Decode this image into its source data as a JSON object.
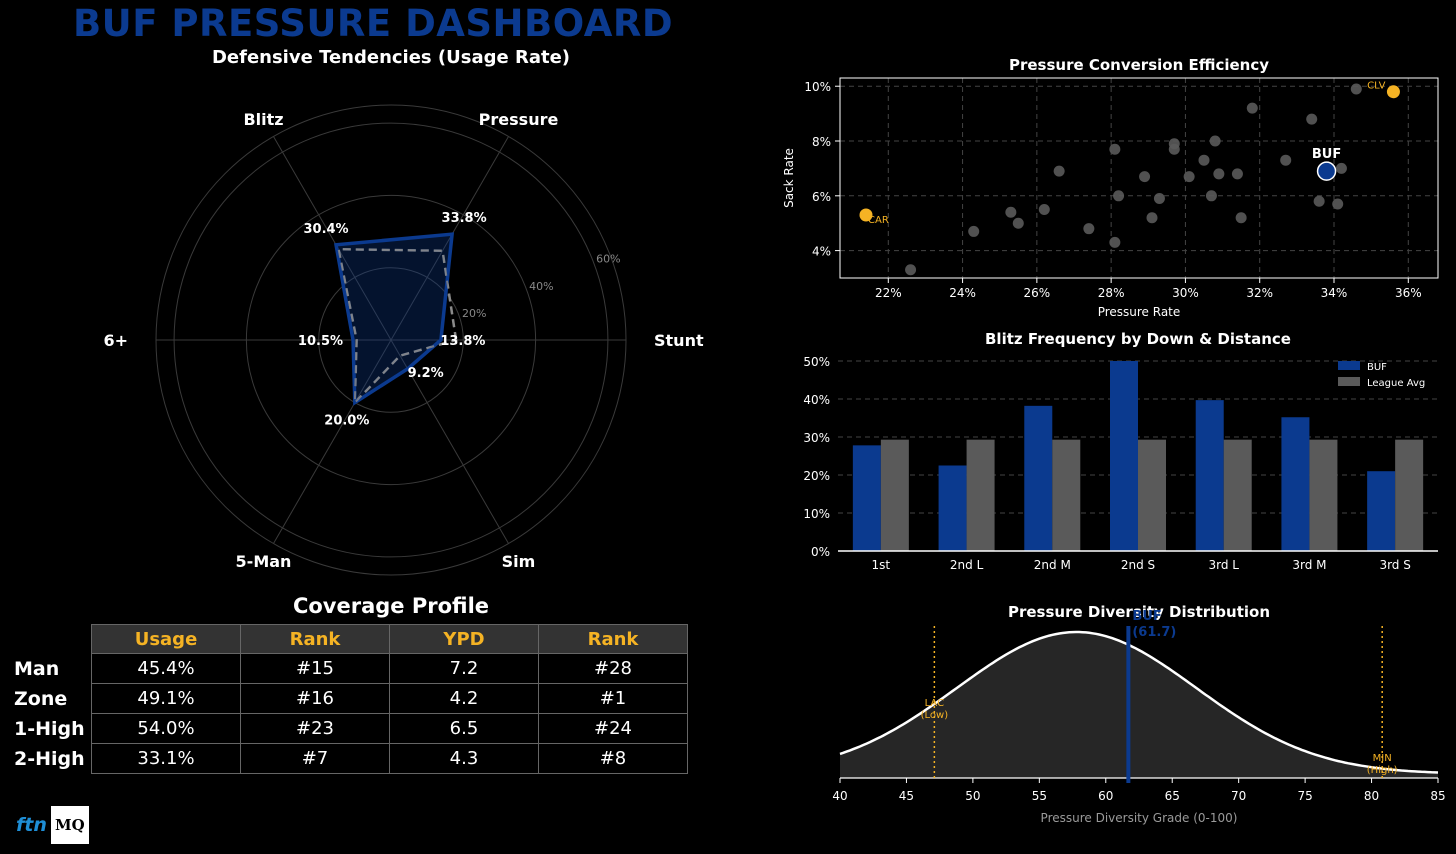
{
  "header": {
    "title": "BUF PRESSURE DASHBOARD",
    "radar_subtitle": "Defensive Tendencies (Usage Rate)"
  },
  "colors": {
    "buf": "#0b3a8f",
    "league": "#5a5a5a",
    "highlight": "#f5b324"
  },
  "chart_data": [
    {
      "type": "radar",
      "title": "Defensive Tendencies (Usage Rate)",
      "axes": [
        "Stunt",
        "Pressure",
        "Blitz",
        "6+",
        "5-Man",
        "Sim"
      ],
      "series": [
        {
          "name": "BUF",
          "values": [
            13.8,
            33.8,
            30.4,
            10.5,
            20.0,
            9.2
          ]
        },
        {
          "name": "League Avg",
          "values": [
            18.0,
            28.5,
            29.0,
            9.5,
            20.0,
            5.0
          ]
        }
      ],
      "value_labels": [
        "13.8%",
        "33.8%",
        "30.4%",
        "10.5%",
        "20.0%",
        "9.2%"
      ],
      "rings": [
        20,
        40,
        60
      ],
      "ring_labels": [
        "20%",
        "40%",
        "60%"
      ],
      "rmax": 65
    },
    {
      "type": "scatter",
      "title": "Pressure Conversion Efficiency",
      "xlabel": "Pressure Rate",
      "ylabel": "Sack Rate",
      "xlim": [
        20.7,
        36.8
      ],
      "ylim": [
        3.0,
        10.3
      ],
      "xticks": [
        22,
        24,
        26,
        28,
        30,
        32,
        34,
        36
      ],
      "xtick_labels": [
        "22%",
        "24%",
        "26%",
        "28%",
        "30%",
        "32%",
        "34%",
        "36%"
      ],
      "yticks": [
        4,
        6,
        8,
        10
      ],
      "ytick_labels": [
        "4%",
        "6%",
        "8%",
        "10%"
      ],
      "teams": [
        {
          "x": 22.6,
          "y": 3.3
        },
        {
          "x": 24.3,
          "y": 4.7
        },
        {
          "x": 25.3,
          "y": 5.4
        },
        {
          "x": 25.5,
          "y": 5.0
        },
        {
          "x": 26.2,
          "y": 5.5
        },
        {
          "x": 26.6,
          "y": 6.9
        },
        {
          "x": 27.4,
          "y": 4.8
        },
        {
          "x": 28.1,
          "y": 4.3
        },
        {
          "x": 28.1,
          "y": 7.7
        },
        {
          "x": 28.2,
          "y": 6.0
        },
        {
          "x": 28.9,
          "y": 6.7
        },
        {
          "x": 29.1,
          "y": 5.2
        },
        {
          "x": 29.3,
          "y": 5.9
        },
        {
          "x": 29.7,
          "y": 7.7
        },
        {
          "x": 29.7,
          "y": 7.9
        },
        {
          "x": 30.1,
          "y": 6.7
        },
        {
          "x": 30.5,
          "y": 7.3
        },
        {
          "x": 30.7,
          "y": 6.0
        },
        {
          "x": 30.8,
          "y": 8.0
        },
        {
          "x": 30.9,
          "y": 6.8
        },
        {
          "x": 31.4,
          "y": 6.8
        },
        {
          "x": 31.5,
          "y": 5.2
        },
        {
          "x": 31.8,
          "y": 9.2
        },
        {
          "x": 32.7,
          "y": 7.3
        },
        {
          "x": 33.4,
          "y": 8.8
        },
        {
          "x": 33.6,
          "y": 5.8
        },
        {
          "x": 34.2,
          "y": 7.0
        },
        {
          "x": 34.1,
          "y": 5.7
        },
        {
          "x": 34.6,
          "y": 9.9
        }
      ],
      "highlights": [
        {
          "label": "CLV",
          "x": 35.6,
          "y": 9.8
        },
        {
          "label": "CAR",
          "x": 21.4,
          "y": 5.3
        }
      ],
      "buf": {
        "label": "BUF",
        "x": 33.8,
        "y": 6.9
      }
    },
    {
      "type": "bar",
      "title": "Blitz Frequency by Down & Distance",
      "categories": [
        "1st",
        "2nd L",
        "2nd M",
        "2nd S",
        "3rd L",
        "3rd M",
        "3rd S"
      ],
      "series": [
        {
          "name": "BUF",
          "values": [
            27.8,
            22.5,
            38.2,
            50.0,
            39.7,
            35.2,
            21.0
          ]
        },
        {
          "name": "League Avg",
          "values": [
            29.3,
            29.3,
            29.3,
            29.3,
            29.3,
            29.3,
            29.3
          ]
        }
      ],
      "ylim": [
        0,
        50
      ],
      "yticks": [
        0,
        10,
        20,
        30,
        40,
        50
      ],
      "ytick_labels": [
        "0%",
        "10%",
        "20%",
        "30%",
        "40%",
        "50%"
      ],
      "legend": [
        "BUF",
        "League Avg"
      ],
      "legend_position": "top-right"
    },
    {
      "type": "area",
      "title": "Pressure Diversity Distribution",
      "xlabel": "Pressure Diversity Grade (0-100)",
      "xlim": [
        40,
        85
      ],
      "xticks": [
        40,
        45,
        50,
        55,
        60,
        65,
        70,
        75,
        80,
        85
      ],
      "distribution": {
        "mean": 57.8,
        "sd": 9.0
      },
      "markers": [
        {
          "label": "BUF",
          "sub": "(61.7)",
          "x": 61.7
        },
        {
          "label": "LAC",
          "sub": "(Low)",
          "x": 47.1
        },
        {
          "label": "MIN",
          "sub": "(High)",
          "x": 80.8
        }
      ]
    }
  ],
  "coverage": {
    "title": "Coverage Profile",
    "columns": [
      "Usage",
      "Rank",
      "YPD",
      "Rank"
    ],
    "rows": [
      {
        "label": "Man",
        "cells": [
          "45.4%",
          "#15",
          "7.2",
          "#28"
        ]
      },
      {
        "label": "Zone",
        "cells": [
          "49.1%",
          "#16",
          "4.2",
          "#1"
        ]
      },
      {
        "label": "1-High",
        "cells": [
          "54.0%",
          "#23",
          "6.5",
          "#24"
        ]
      },
      {
        "label": "2-High",
        "cells": [
          "33.1%",
          "#7",
          "4.3",
          "#8"
        ]
      }
    ]
  },
  "branding": {
    "ftn": "ftn",
    "mq": "MQ"
  }
}
